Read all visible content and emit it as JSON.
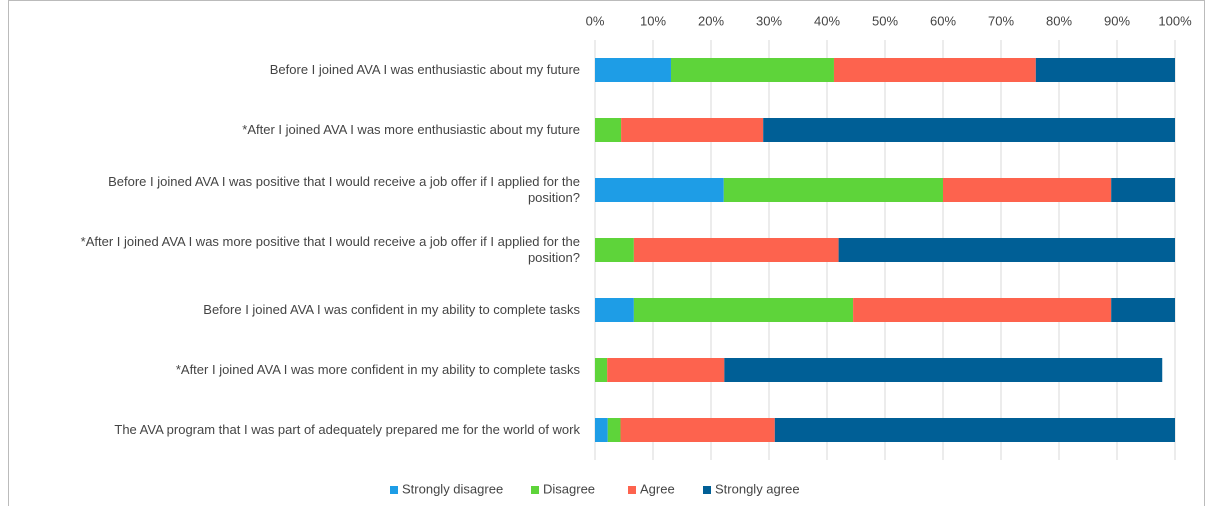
{
  "chart_data": {
    "type": "stacked-barh",
    "categories": [
      "Before I joined AVA I was enthusiastic about my future",
      "*After I joined AVA I was more enthusiastic about my future",
      "Before I joined AVA I was positive that I would receive a job offer if I applied for the position?",
      "*After I joined AVA I was more positive that I would receive a job offer if I applied for the position?",
      "Before I joined AVA I was confident in my ability to complete tasks",
      "*After I joined AVA I was more confident in my ability to complete tasks",
      "The AVA program that I was part of adequately prepared me for the world of work"
    ],
    "series": [
      {
        "name": "Strongly disagree",
        "color": "#1e9de6",
        "values": [
          13.1,
          0,
          22.2,
          0,
          6.7,
          0,
          2.2
        ]
      },
      {
        "name": "Disagree",
        "color": "#5ed43a",
        "values": [
          28.1,
          4.5,
          37.8,
          6.7,
          37.8,
          2.1,
          2.2
        ]
      },
      {
        "name": "Agree",
        "color": "#fd634e",
        "values": [
          34.8,
          24.5,
          29.0,
          35.3,
          44.5,
          20.2,
          26.6
        ]
      },
      {
        "name": "Strongly agree",
        "color": "#005f96",
        "values": [
          24.0,
          71.0,
          11.0,
          58.0,
          11.0,
          75.5,
          69.0
        ]
      }
    ],
    "xlim": [
      0,
      100
    ],
    "xticks": [
      {
        "value": 0,
        "label": "0%"
      },
      {
        "value": 10,
        "label": "10%"
      },
      {
        "value": 20,
        "label": "20%"
      },
      {
        "value": 30,
        "label": "30%"
      },
      {
        "value": 40,
        "label": "40%"
      },
      {
        "value": 50,
        "label": "50%"
      },
      {
        "value": 60,
        "label": "60%"
      },
      {
        "value": 70,
        "label": "70%"
      },
      {
        "value": 80,
        "label": "80%"
      },
      {
        "value": 90,
        "label": "90%"
      },
      {
        "value": 100,
        "label": "100%"
      }
    ],
    "grid": true,
    "legend": "bottom"
  }
}
